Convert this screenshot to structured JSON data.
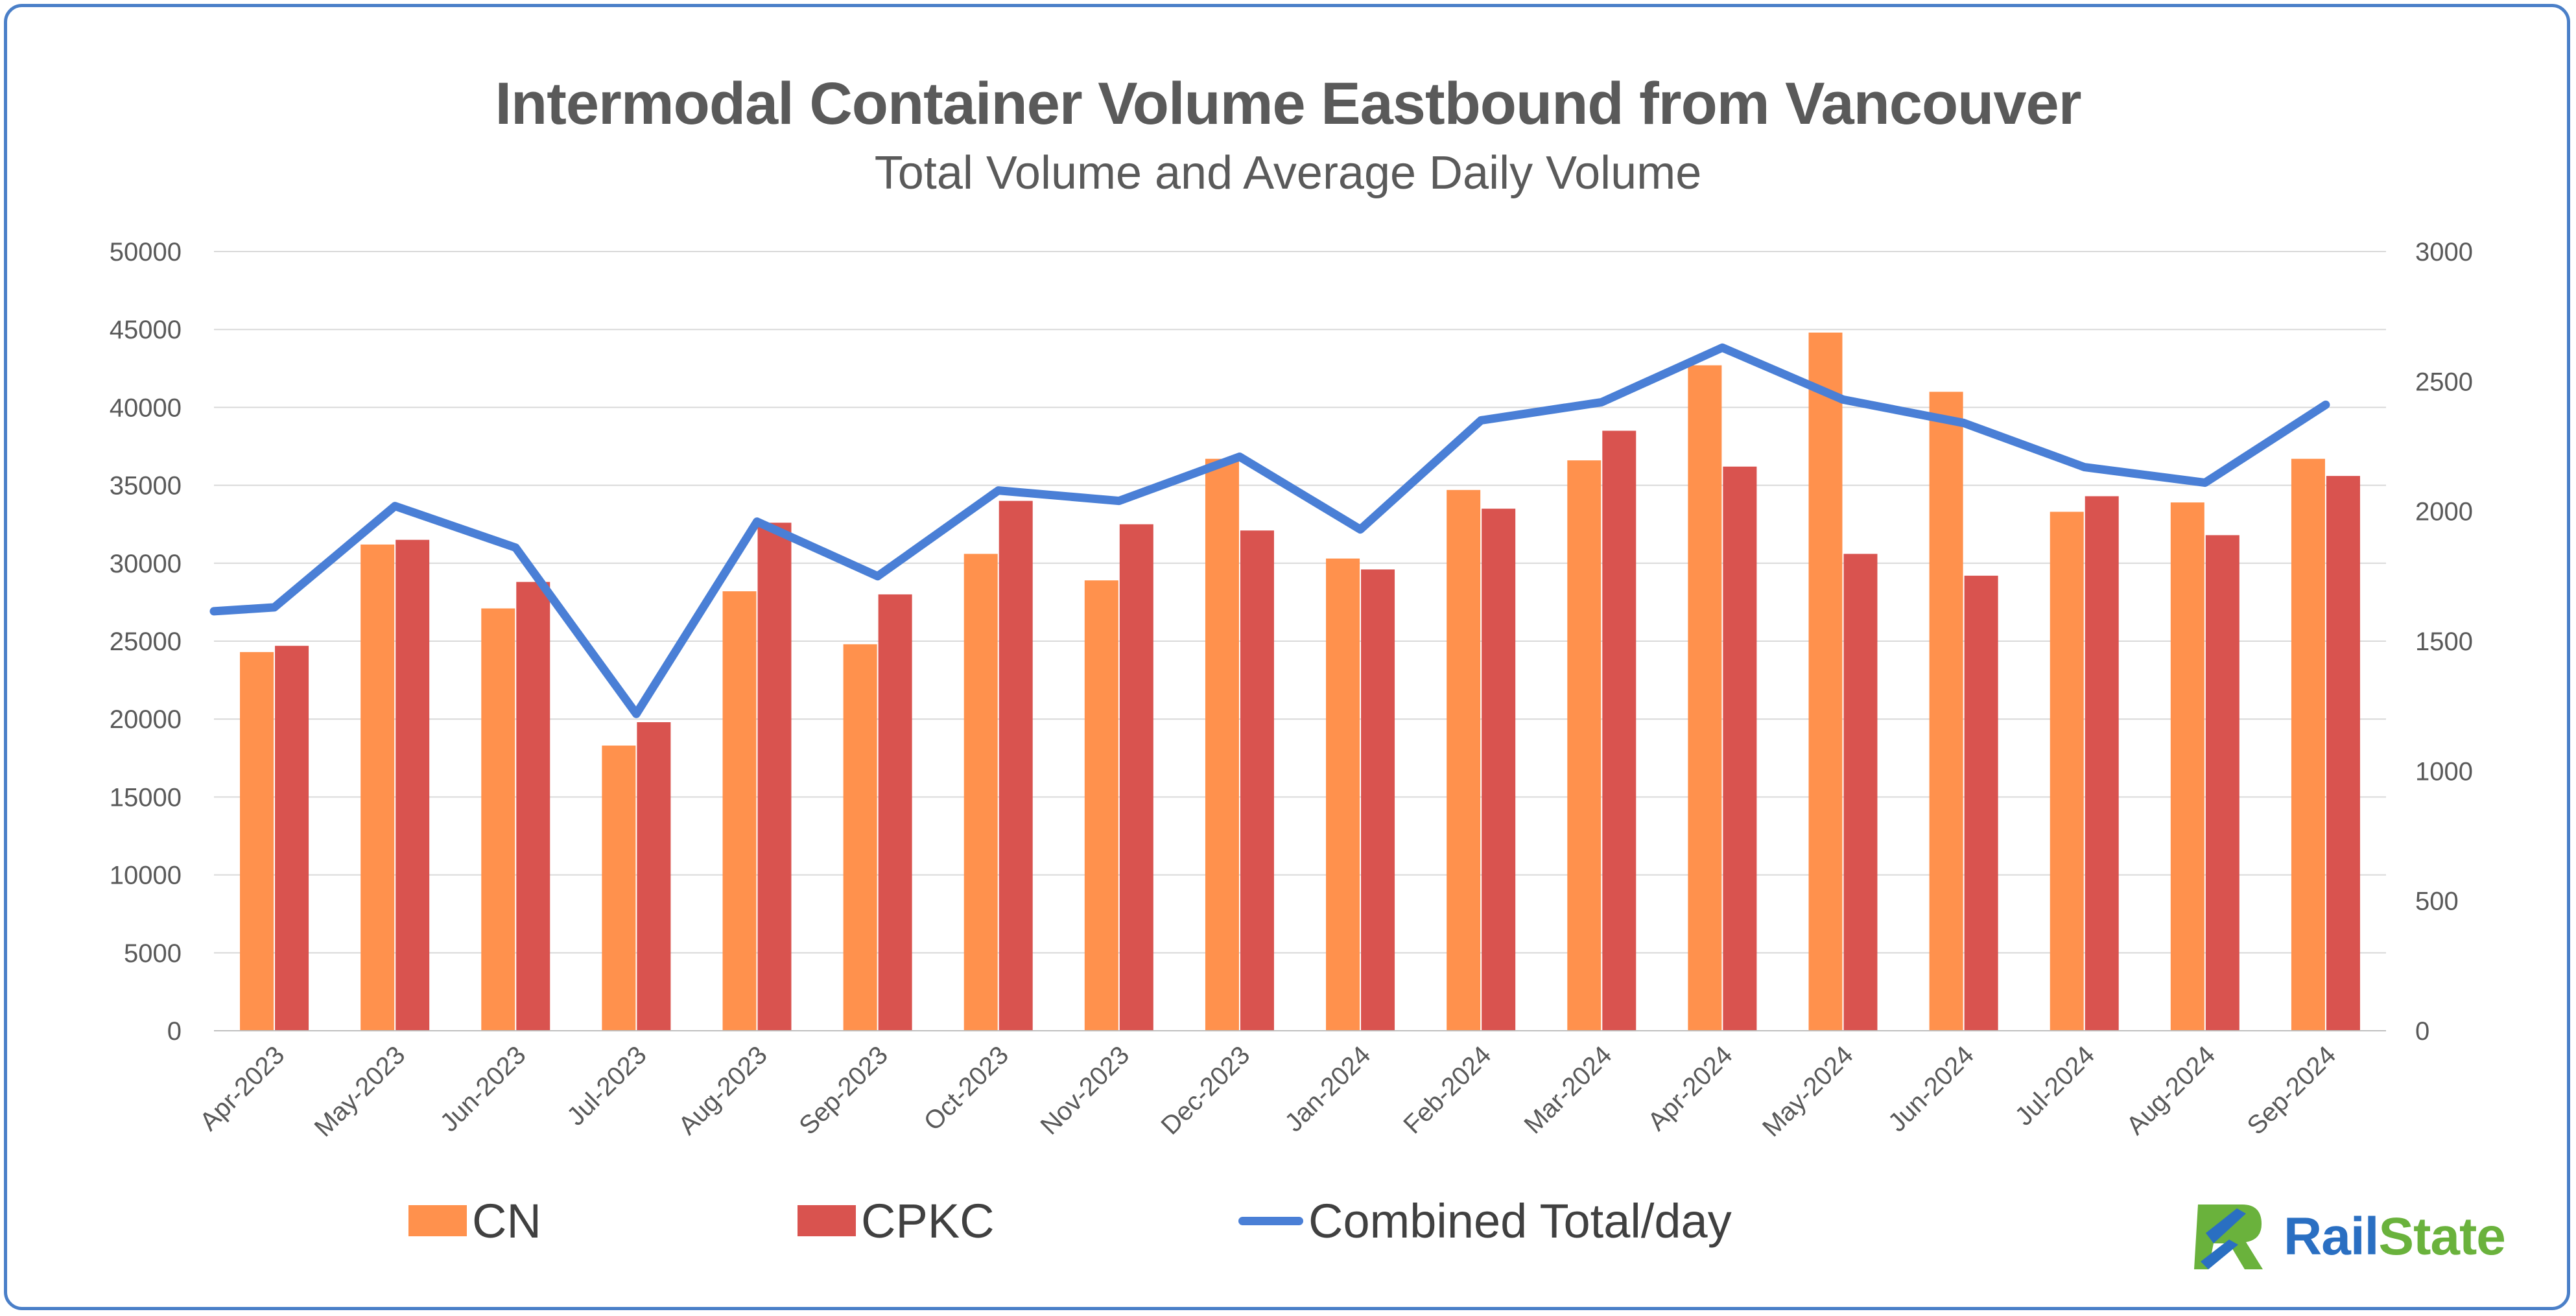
{
  "title": "Intermodal Container Volume Eastbound from Vancouver",
  "subtitle": "Total Volume and Average Daily Volume",
  "brand": {
    "name_part1": "Rail",
    "name_part2": "State"
  },
  "colors": {
    "cn": "#ff914d",
    "cpkc": "#d9534f",
    "combined": "#4a7fd6",
    "border": "#4a7fc8"
  },
  "chart_data": {
    "type": "bar",
    "title": "Intermodal Container Volume Eastbound from Vancouver",
    "subtitle": "Total Volume and Average Daily Volume",
    "categories": [
      "Apr-2023",
      "May-2023",
      "Jun-2023",
      "Jul-2023",
      "Aug-2023",
      "Sep-2023",
      "Oct-2023",
      "Nov-2023",
      "Dec-2023",
      "Jan-2024",
      "Feb-2024",
      "Mar-2024",
      "Apr-2024",
      "May-2024",
      "Jun-2024",
      "Jul-2024",
      "Aug-2024",
      "Sep-2024"
    ],
    "series": [
      {
        "name": "CN",
        "type": "bar",
        "axis": "left",
        "values": [
          24300,
          31200,
          27100,
          18300,
          28200,
          24800,
          30600,
          28900,
          36700,
          30300,
          34700,
          36600,
          42700,
          44800,
          41000,
          33300,
          33900,
          36700
        ]
      },
      {
        "name": "CPKC",
        "type": "bar",
        "axis": "left",
        "values": [
          24700,
          31500,
          28800,
          19800,
          32600,
          28000,
          34000,
          32500,
          32100,
          29600,
          33500,
          38500,
          36200,
          30600,
          29200,
          34300,
          31800,
          35600
        ]
      },
      {
        "name": "Combined Total/day",
        "type": "line",
        "axis": "right",
        "values": [
          1630,
          2020,
          1860,
          1220,
          1960,
          1750,
          2080,
          2040,
          2210,
          1930,
          2350,
          2420,
          2630,
          2430,
          2340,
          2170,
          2110,
          2410
        ]
      }
    ],
    "left_axis": {
      "min": 0,
      "max": 50000,
      "step": 5000,
      "ticks": [
        "0",
        "5000",
        "10000",
        "15000",
        "20000",
        "25000",
        "30000",
        "35000",
        "40000",
        "45000",
        "50000"
      ]
    },
    "right_axis": {
      "min": 0,
      "max": 3000,
      "step": 500,
      "ticks": [
        "0",
        "500",
        "1000",
        "1500",
        "2000",
        "2500",
        "3000"
      ]
    },
    "line_start_value": 1615,
    "grid": true,
    "legend": [
      "CN",
      "CPKC",
      "Combined Total/day"
    ],
    "legend_position": "bottom"
  }
}
